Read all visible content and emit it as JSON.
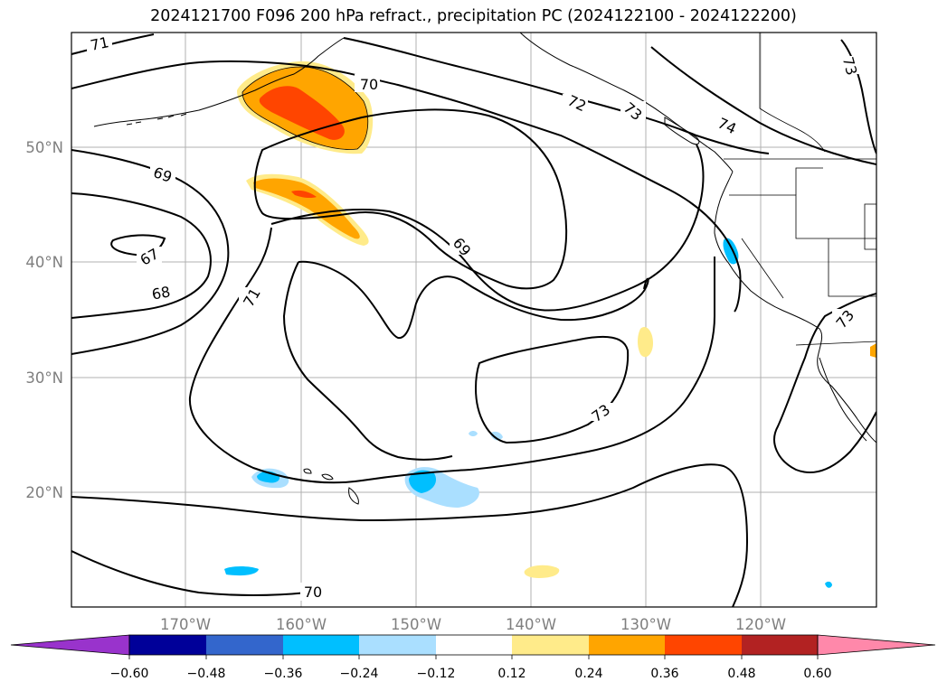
{
  "title": "2024121700 F096 200 hPa refract., precipitation PC (2024122100 - 2024122200)",
  "latitude_labels": [
    "50°N",
    "40°N",
    "30°N",
    "20°N"
  ],
  "longitude_labels": [
    "170°W",
    "160°W",
    "150°W",
    "140°W",
    "130°W",
    "120°W"
  ],
  "contour_labels": [
    "71",
    "70",
    "72",
    "73",
    "74",
    "73",
    "69",
    "67",
    "68",
    "71",
    "69",
    "73",
    "73",
    "70"
  ],
  "colorbar": {
    "tick_labels": [
      "−0.60",
      "−0.48",
      "−0.36",
      "−0.24",
      "−0.12",
      "0.12",
      "0.24",
      "0.36",
      "0.48",
      "0.60"
    ],
    "colors": [
      "#9933cc",
      "#000099",
      "#3366cc",
      "#00bfff",
      "#aadfff",
      "#ffffff",
      "#ffeb8a",
      "#ffa500",
      "#ff4500",
      "#b22222",
      "#ff88aa"
    ]
  }
}
